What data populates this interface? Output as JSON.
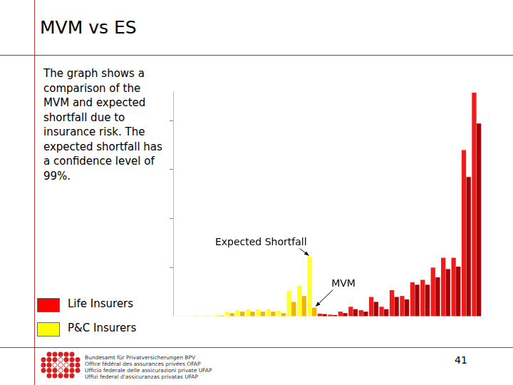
{
  "slide": {
    "text": "The graph shows a comparison of the MVM and expected shortfall due to insurance risk. The expected shortfall has a confidence level of 99%.",
    "footer": [
      "Bundesamt für Privatversicherungen BPV",
      "Office fédéral des assurances privées OFAP",
      "Ufficio federale delle assicurazioni private UFAP",
      "Uffizi federal d'assicuranzas privatas UFAP"
    ],
    "page_number": 41
  },
  "chart_data": {
    "type": "bar",
    "title": "MVM vs ES",
    "categories": [
      null,
      null,
      null,
      null,
      null,
      null,
      null,
      null,
      null,
      null,
      null,
      null,
      null,
      null,
      null,
      null,
      null,
      null,
      null,
      null,
      null,
      null,
      null,
      null,
      null,
      null,
      null,
      null,
      null,
      null
    ],
    "series": [
      {
        "name": "Expected Shortfall",
        "colors": [
          "#ffff33",
          "#ffff33",
          "#ffff33",
          "#ffff33",
          "#ffff33",
          "#ffff33",
          "#ffff33",
          "#ffff33",
          "#ffff33",
          "#ffff33",
          "#ffff33",
          "#ffff33",
          "#ffff33",
          "#ffff33",
          "#ee1c1c",
          "#ee1c1c",
          "#ee1c1c",
          "#ee1c1c",
          "#ee1c1c",
          "#ee1c1c",
          "#ee1c1c",
          "#ee1c1c",
          "#ee1c1c",
          "#ee1c1c",
          "#ee1c1c",
          "#ee1c1c",
          "#ee1c1c",
          "#ee1c1c",
          "#ee1c1c",
          "#ee1c1c"
        ],
        "values": [
          0.01,
          0.01,
          0.02,
          0.02,
          0.03,
          0.1,
          0.13,
          0.15,
          0.15,
          0.15,
          0.12,
          0.52,
          0.63,
          1.23,
          0.06,
          0.04,
          0.1,
          0.2,
          0.13,
          0.4,
          0.2,
          0.54,
          0.42,
          0.7,
          0.75,
          1.0,
          1.2,
          1.2,
          3.4,
          4.57
        ]
      },
      {
        "name": "MVM",
        "colors": [
          "#f2b300",
          "#f2b300",
          "#f2b300",
          "#f2b300",
          "#f2b300",
          "#f2b300",
          "#f2b300",
          "#f2b300",
          "#f2b300",
          "#f2b300",
          "#f2b300",
          "#f2b300",
          "#f2b300",
          "#f2b300",
          "#a60000",
          "#a60000",
          "#a60000",
          "#a60000",
          "#a60000",
          "#a60000",
          "#a60000",
          "#a60000",
          "#a60000",
          "#a60000",
          "#a60000",
          "#a60000",
          "#a60000",
          "#a60000",
          "#a60000",
          "#a60000"
        ],
        "values": [
          0.005,
          0.005,
          0.01,
          0.01,
          0.02,
          0.07,
          0.1,
          0.1,
          0.1,
          0.1,
          0.07,
          0.3,
          0.42,
          0.18,
          0.05,
          0.03,
          0.07,
          0.15,
          0.1,
          0.3,
          0.15,
          0.4,
          0.35,
          0.65,
          0.65,
          0.8,
          0.97,
          1.02,
          2.85,
          3.94
        ]
      }
    ],
    "groups": [
      {
        "name": "Life Insurers",
        "color": "#ff0000"
      },
      {
        "name": "P&C Insurers",
        "color": "#ffff00"
      }
    ],
    "annotations": [
      {
        "text": "Expected Shortfall",
        "series": 0,
        "index": 13
      },
      {
        "text": "MVM",
        "series": 1,
        "index": 13
      }
    ],
    "ylim": [
      0,
      4.6
    ],
    "yticks": [
      0,
      1,
      2,
      3,
      4
    ],
    "grid": false,
    "tick_labels": false,
    "legend": "lower left"
  }
}
